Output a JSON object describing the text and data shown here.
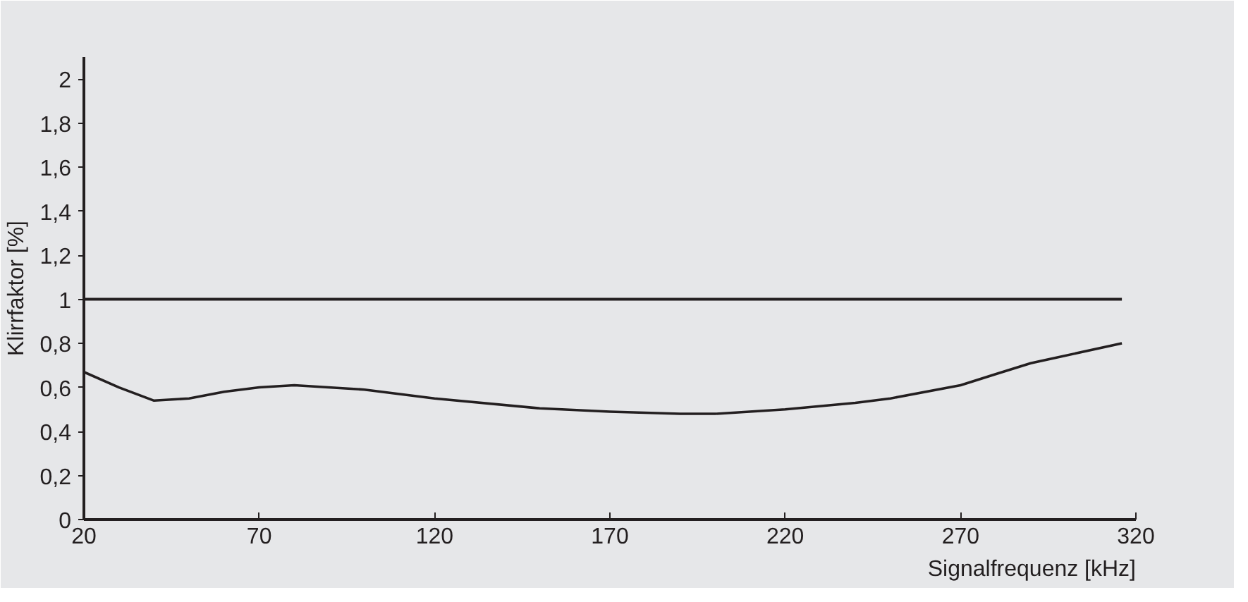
{
  "chart_data": {
    "type": "line",
    "xlabel": "Signalfrequenz [kHz]",
    "ylabel": "Klirrfaktor [%]",
    "x": [
      20,
      30,
      40,
      50,
      60,
      70,
      80,
      100,
      120,
      150,
      170,
      190,
      200,
      220,
      240,
      250,
      270,
      280,
      290,
      316
    ],
    "series": [
      {
        "color": "#231f20",
        "values": [
          0.67,
          0.6,
          0.54,
          0.55,
          0.58,
          0.6,
          0.61,
          0.59,
          0.55,
          0.505,
          0.49,
          0.48,
          0.48,
          0.5,
          0.53,
          0.55,
          0.61,
          0.66,
          0.71,
          0.8
        ]
      }
    ],
    "ref_lines": [
      {
        "axis": "y",
        "value": 1,
        "color": "#231f20"
      }
    ],
    "xlim": [
      20,
      320
    ],
    "ylim": [
      0,
      2.1
    ],
    "xticks": [
      20,
      70,
      120,
      170,
      220,
      270,
      320
    ],
    "yticks": [
      0,
      {
        "value": 0.2,
        "label": "0,2"
      },
      {
        "value": 0.4,
        "label": "0,4"
      },
      {
        "value": 0.6,
        "label": "0,6"
      },
      {
        "value": 0.8,
        "label": "0,8"
      },
      1,
      {
        "value": 1.2,
        "label": "1,2"
      },
      {
        "value": 1.4,
        "label": "1,4"
      },
      {
        "value": 1.6,
        "label": "1,6"
      },
      {
        "value": 1.8,
        "label": "1,8"
      },
      2
    ],
    "marker": "none"
  }
}
